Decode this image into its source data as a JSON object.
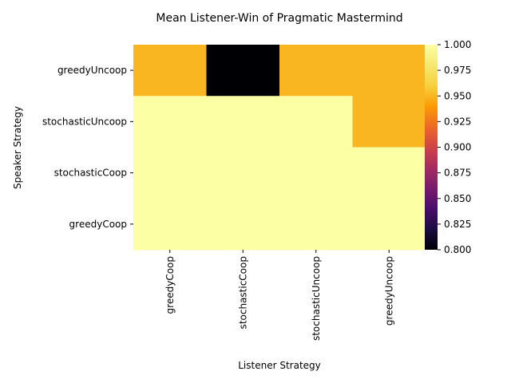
{
  "chart_data": {
    "type": "heatmap",
    "title": "Mean Listener-Win of Pragmatic Mastermind",
    "xlabel": "Listener Strategy",
    "ylabel": "Speaker Strategy",
    "x_categories": [
      "greedyCoop",
      "stochasticCoop",
      "stochasticUncoop",
      "greedyUncoop"
    ],
    "y_categories": [
      "greedyUncoop",
      "stochasticUncoop",
      "stochasticCoop",
      "greedyCoop"
    ],
    "values": [
      [
        0.95,
        0.8,
        0.95,
        0.95
      ],
      [
        1.0,
        1.0,
        1.0,
        0.95
      ],
      [
        1.0,
        1.0,
        1.0,
        1.0
      ],
      [
        1.0,
        1.0,
        1.0,
        1.0
      ]
    ],
    "colorscale": "inferno",
    "vmin": 0.8,
    "vmax": 1.0,
    "colorbar_ticks": [
      "0.800",
      "0.825",
      "0.850",
      "0.875",
      "0.900",
      "0.925",
      "0.950",
      "0.975",
      "1.000"
    ],
    "grid": false
  }
}
